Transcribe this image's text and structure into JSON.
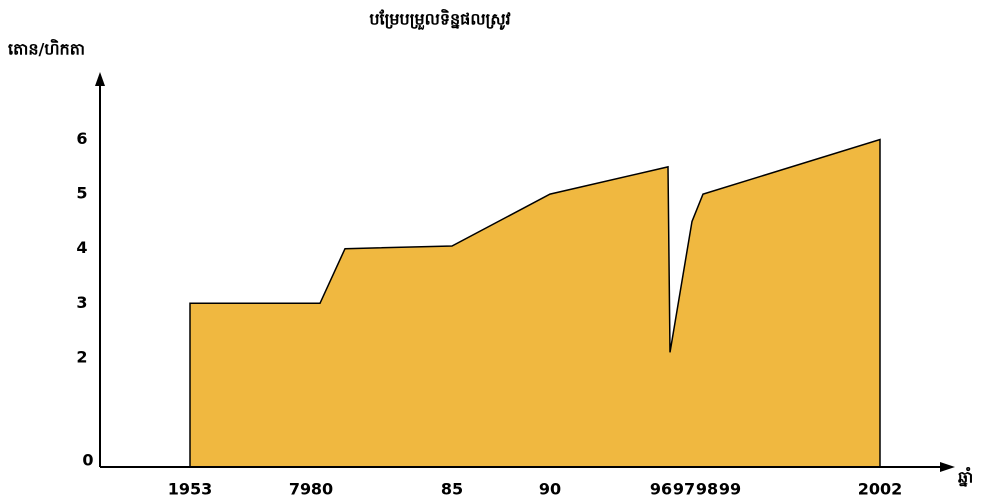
{
  "chart_data": {
    "type": "area",
    "title": "បម្រែបម្រួលទិន្នផលស្រូវ",
    "y_label": "តោន/ហិកតា",
    "x_label": "ឆ្នាំ",
    "categories": [
      "1953",
      "79",
      "80",
      "85",
      "90",
      "96",
      "97",
      "98",
      "99",
      "2002"
    ],
    "values": [
      3,
      3,
      4,
      4.05,
      5,
      5.5,
      2.1,
      4.5,
      5,
      6
    ],
    "color": "#f0b840",
    "ylim": [
      0,
      7
    ],
    "yticks": [
      0,
      2,
      3,
      4,
      5,
      6
    ]
  }
}
